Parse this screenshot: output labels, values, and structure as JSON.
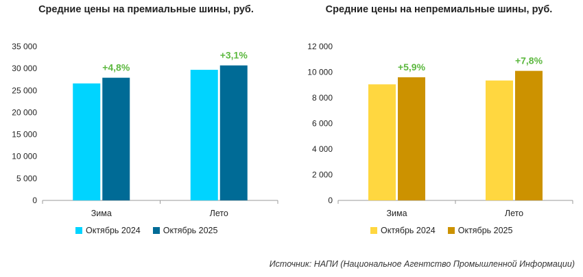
{
  "chart_data": [
    {
      "type": "bar",
      "title": "Средние цены на премиальные шины, руб.",
      "categories": [
        "Зима",
        "Лето"
      ],
      "series": [
        {
          "name": "Октябрь 2024",
          "values": [
            26600,
            29700
          ],
          "color": "#00d4ff"
        },
        {
          "name": "Октябрь 2025",
          "values": [
            27900,
            30700
          ],
          "color": "#006b96"
        }
      ],
      "data_labels": [
        "+4,8%",
        "+3,1%"
      ],
      "y_ticks": [
        "0",
        "5 000",
        "10 000",
        "15 000",
        "20 000",
        "25 000",
        "30 000",
        "35 000"
      ],
      "ylim": [
        0,
        35000
      ],
      "grid": false,
      "legend_position": "bottom"
    },
    {
      "type": "bar",
      "title": "Средние цены на непремиальные шины,  руб.",
      "categories": [
        "Зима",
        "Лето"
      ],
      "series": [
        {
          "name": "Октябрь 2024",
          "values": [
            9050,
            9350
          ],
          "color": "#ffd740"
        },
        {
          "name": "Октябрь 2025",
          "values": [
            9600,
            10100
          ],
          "color": "#cc9200"
        }
      ],
      "data_labels": [
        "+5,9%",
        "+7,8%"
      ],
      "y_ticks": [
        "0",
        "2 000",
        "4 000",
        "6 000",
        "8 000",
        "10 000",
        "12 000"
      ],
      "ylim": [
        0,
        12000
      ],
      "grid": false,
      "legend_position": "bottom"
    }
  ],
  "source": "Источник: НАПИ (Национальное Агентство Промышленной Информации)",
  "label_color": "#5cb83f"
}
